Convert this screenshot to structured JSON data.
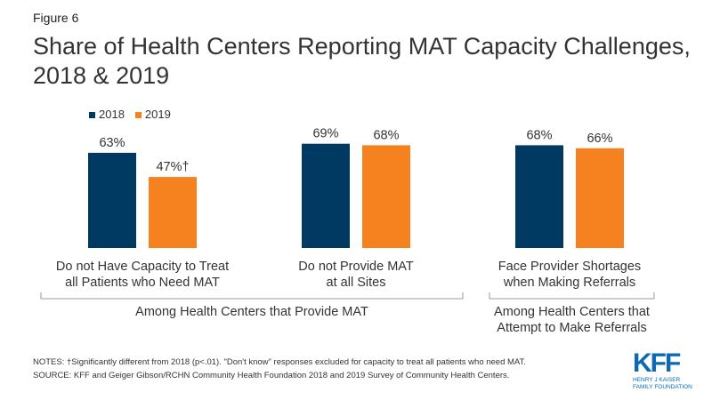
{
  "chart_data": {
    "type": "bar",
    "figure_label": "Figure 6",
    "title": "Share of Health Centers Reporting MAT Capacity Challenges, 2018 & 2019",
    "categories": [
      "Do not Have Capacity to Treat all Patients who Need MAT",
      "Do not Provide MAT at all Sites",
      "Face Provider Shortages when Making Referrals"
    ],
    "category_lines": [
      [
        "Do not Have Capacity to Treat",
        "all Patients who Need MAT"
      ],
      [
        "Do not Provide MAT",
        "at all Sites"
      ],
      [
        "Face Provider Shortages",
        "when Making Referrals"
      ]
    ],
    "series": [
      {
        "name": "2018",
        "color": "#003a63",
        "values": [
          63,
          69,
          68
        ],
        "labels": [
          "63%",
          "69%",
          "68%"
        ]
      },
      {
        "name": "2019",
        "color": "#f5821f",
        "values": [
          47,
          68,
          66
        ],
        "labels": [
          "47%†",
          "68%",
          "66%"
        ]
      }
    ],
    "groups": [
      {
        "label": "Among Health Centers that Provide MAT",
        "lines": [
          "Among Health Centers that Provide MAT"
        ]
      },
      {
        "label": "Among Health Centers that Attempt to Make Referrals",
        "lines": [
          "Among Health Centers that",
          "Attempt to Make Referrals"
        ]
      }
    ],
    "ylim": [
      0,
      100
    ],
    "grid": false,
    "legend": "top-left"
  },
  "notes": "NOTES: †Significantly different from 2018 (p<.01). \"Don't know\" responses excluded for capacity to treat all patients who need MAT.",
  "source": "SOURCE: KFF and Geiger Gibson/RCHN Community Health Foundation 2018 and 2019 Survey of Community Health Centers.",
  "logo": {
    "text": "KFF",
    "sub1": "HENRY J KAISER",
    "sub2": "FAMILY FOUNDATION"
  }
}
